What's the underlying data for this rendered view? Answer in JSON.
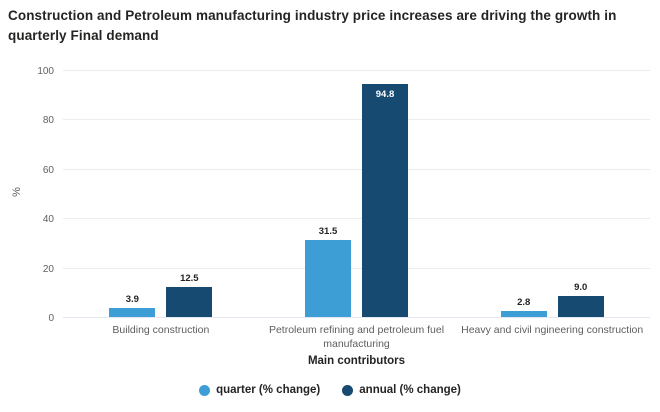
{
  "chart_data": {
    "type": "bar",
    "title": "Construction and Petroleum manufacturing industry price increases are driving the growth in quarterly Final demand",
    "xlabel": "Main contributors",
    "ylabel": "%",
    "ylim": [
      0,
      100
    ],
    "yticks": [
      0,
      20,
      40,
      60,
      80,
      100
    ],
    "grid": "horizontal",
    "legend_position": "bottom",
    "categories": [
      "Building construction",
      "Petroleum refining and petroleum fuel manufacturing",
      "Heavy and civil ngineering construction"
    ],
    "series": [
      {
        "name": "quarter (% change)",
        "color": "#3d9dd5",
        "values": [
          3.9,
          31.5,
          2.8
        ],
        "labels": [
          "3.9",
          "31.5",
          "2.8"
        ]
      },
      {
        "name": "annual (% change)",
        "color": "#174a70",
        "values": [
          12.5,
          94.8,
          9.0
        ],
        "labels": [
          "12.5",
          "94.8",
          "9.0"
        ]
      }
    ],
    "colors": {
      "title_text": "#252423",
      "axis_text": "#605e5c",
      "gridline": "#ececec",
      "zero_line": "#e3e7f3",
      "quarter_bar": "#3d9dd5",
      "annual_bar": "#174a70"
    }
  }
}
